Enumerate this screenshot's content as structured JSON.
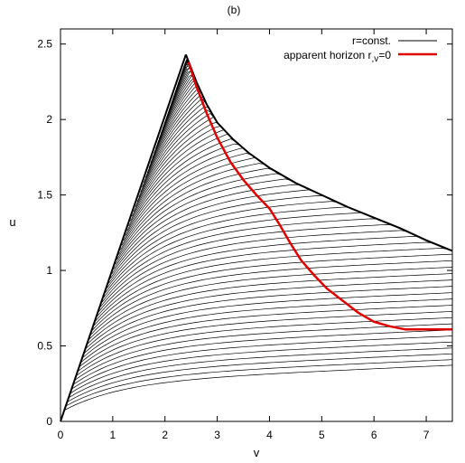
{
  "chart_data": {
    "type": "line",
    "title": "(b)",
    "xlabel": "v",
    "ylabel": "u",
    "xlim": [
      0,
      7.5
    ],
    "ylim": [
      0,
      2.6
    ],
    "x_ticks": [
      "0",
      "1",
      "2",
      "3",
      "4",
      "5",
      "6",
      "7"
    ],
    "y_ticks": [
      "0",
      "0.5",
      "1",
      "1.5",
      "2",
      "2.5"
    ],
    "grid": false,
    "legend_position": "top-right",
    "peak": {
      "v": 2.4,
      "u": 2.43
    },
    "series": [
      {
        "name": "r=const.",
        "color": "#000000",
        "description": "family of constant-r contour lines"
      },
      {
        "name": "apparent horizon r",
        "name_subscript": ",v",
        "name_suffix": "=0",
        "color": "#e00000",
        "points": [
          [
            2.45,
            2.38
          ],
          [
            2.6,
            2.22
          ],
          [
            2.8,
            2.04
          ],
          [
            3.0,
            1.88
          ],
          [
            3.25,
            1.72
          ],
          [
            3.5,
            1.6
          ],
          [
            3.75,
            1.5
          ],
          [
            4.0,
            1.41
          ],
          [
            4.2,
            1.3
          ],
          [
            4.4,
            1.18
          ],
          [
            4.6,
            1.07
          ],
          [
            4.85,
            0.97
          ],
          [
            5.1,
            0.88
          ],
          [
            5.4,
            0.8
          ],
          [
            5.7,
            0.72
          ],
          [
            6.0,
            0.66
          ],
          [
            6.3,
            0.63
          ],
          [
            6.6,
            0.61
          ],
          [
            7.0,
            0.61
          ],
          [
            7.5,
            0.61
          ]
        ]
      }
    ],
    "upper_envelope": [
      [
        2.4,
        2.43
      ],
      [
        2.6,
        2.25
      ],
      [
        2.8,
        2.1
      ],
      [
        3.0,
        1.98
      ],
      [
        3.3,
        1.87
      ],
      [
        3.6,
        1.78
      ],
      [
        4.0,
        1.68
      ],
      [
        4.5,
        1.58
      ],
      [
        5.0,
        1.5
      ],
      [
        5.5,
        1.42
      ],
      [
        6.0,
        1.35
      ],
      [
        6.5,
        1.28
      ],
      [
        7.0,
        1.2
      ],
      [
        7.5,
        1.13
      ]
    ],
    "horizon_asymptote_u": 0.61
  }
}
